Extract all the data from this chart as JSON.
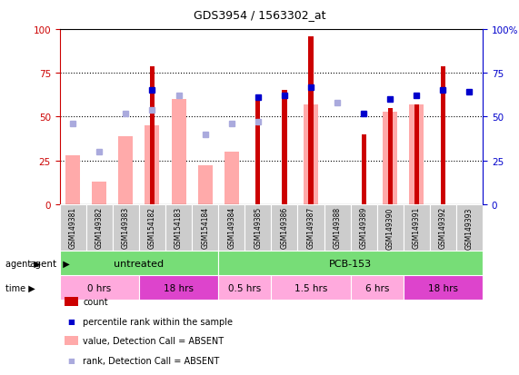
{
  "title": "GDS3954 / 1563302_at",
  "samples": [
    "GSM149381",
    "GSM149382",
    "GSM149383",
    "GSM154182",
    "GSM154183",
    "GSM154184",
    "GSM149384",
    "GSM149385",
    "GSM149386",
    "GSM149387",
    "GSM149388",
    "GSM149389",
    "GSM149390",
    "GSM149391",
    "GSM149392",
    "GSM149393"
  ],
  "count_values": [
    0,
    0,
    0,
    79,
    0,
    0,
    0,
    62,
    65,
    96,
    0,
    40,
    55,
    57,
    79,
    0
  ],
  "value_absent": [
    28,
    13,
    39,
    45,
    60,
    22,
    30,
    0,
    0,
    57,
    0,
    0,
    53,
    57,
    0,
    0
  ],
  "rank_absent": [
    46,
    30,
    52,
    54,
    62,
    40,
    46,
    47,
    0,
    0,
    58,
    0,
    0,
    0,
    0,
    0
  ],
  "rank_present": [
    0,
    0,
    0,
    65,
    0,
    0,
    0,
    61,
    62,
    67,
    0,
    52,
    60,
    62,
    65,
    64
  ],
  "agent_groups": [
    {
      "label": "untreated",
      "start": 0,
      "end": 6
    },
    {
      "label": "PCB-153",
      "start": 6,
      "end": 16
    }
  ],
  "time_groups": [
    {
      "label": "0 hrs",
      "start": 0,
      "end": 3,
      "dark": false
    },
    {
      "label": "18 hrs",
      "start": 3,
      "end": 6,
      "dark": true
    },
    {
      "label": "0.5 hrs",
      "start": 6,
      "end": 8,
      "dark": false
    },
    {
      "label": "1.5 hrs",
      "start": 8,
      "end": 11,
      "dark": false
    },
    {
      "label": "6 hrs",
      "start": 11,
      "end": 13,
      "dark": false
    },
    {
      "label": "18 hrs",
      "start": 13,
      "end": 16,
      "dark": true
    }
  ],
  "ylim": [
    0,
    100
  ],
  "grid_values": [
    25,
    50,
    75
  ],
  "left_axis_color": "#cc0000",
  "right_axis_color": "#0000cc",
  "count_color": "#cc0000",
  "rank_present_color": "#0000cc",
  "value_absent_color": "#ffaaaa",
  "rank_absent_color": "#aaaadd",
  "agent_color": "#77dd77",
  "time_light_color": "#ffaadd",
  "time_dark_color": "#dd44cc",
  "sample_bg_color": "#cccccc",
  "background_color": "#ffffff"
}
